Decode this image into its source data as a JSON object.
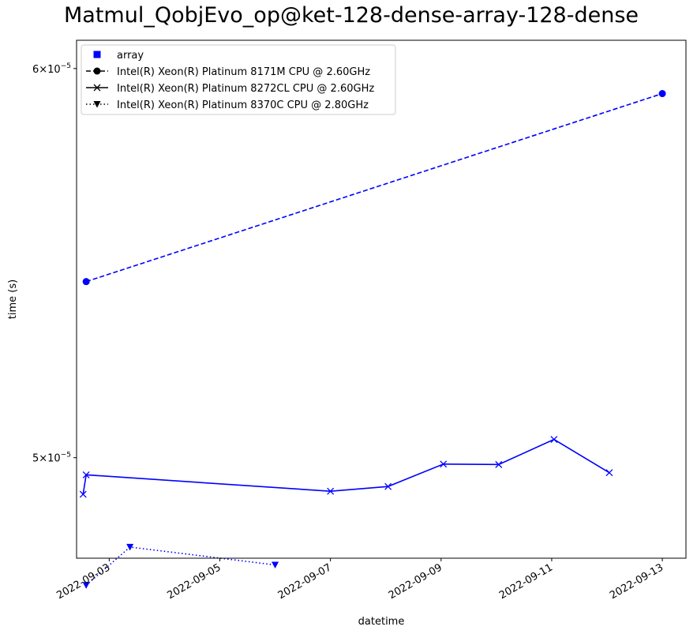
{
  "chart_data": {
    "type": "line",
    "title": "Matmul_QobjEvo_op@ket-128-dense-array-128-dense",
    "xlabel": "datetime",
    "ylabel": "time (s)",
    "yscale": "log",
    "xlim": [
      "2022-09-02T09:50",
      "2022-09-13T10:15"
    ],
    "ylim": [
      4.77e-05,
      6.08e-05
    ],
    "x_ticks": [
      "2022-09-03",
      "2022-09-05",
      "2022-09-07",
      "2022-09-09",
      "2022-09-11",
      "2022-09-13"
    ],
    "y_ticks": [
      {
        "value": 5e-05,
        "mantissa": "5",
        "exponent": "−5"
      },
      {
        "value": 6e-05,
        "mantissa": "6",
        "exponent": "−5"
      }
    ],
    "legend_position": "top-left",
    "legend": [
      {
        "label": "array",
        "marker": "square",
        "linestyle": "none"
      },
      {
        "label": "Intel(R) Xeon(R) Platinum 8171M CPU @ 2.60GHz",
        "marker": "circle",
        "linestyle": "dashed"
      },
      {
        "label": "Intel(R) Xeon(R) Platinum 8272CL CPU @ 2.60GHz",
        "marker": "x",
        "linestyle": "solid"
      },
      {
        "label": "Intel(R) Xeon(R) Platinum 8370C CPU @ 2.80GHz",
        "marker": "triangle-down",
        "linestyle": "dotted"
      }
    ],
    "series": [
      {
        "name": "Intel(R) Xeon(R) Platinum 8171M CPU @ 2.60GHz",
        "marker": "circle",
        "linestyle": "dashed",
        "color": "#0000ff",
        "x": [
          "2022-09-02T14:00",
          "2022-09-13T00:00"
        ],
        "y": [
          5.43e-05,
          5.93e-05
        ]
      },
      {
        "name": "Intel(R) Xeon(R) Platinum 8272CL CPU @ 2.60GHz",
        "marker": "x",
        "linestyle": "solid",
        "color": "#0000ff",
        "x": [
          "2022-09-02T12:40",
          "2022-09-02T14:00",
          "2022-09-07T00:00",
          "2022-09-08T01:00",
          "2022-09-09T01:00",
          "2022-09-10T01:00",
          "2022-09-11T01:00",
          "2022-09-12T01:00"
        ],
        "y": [
          4.915e-05,
          4.96e-05,
          4.922e-05,
          4.933e-05,
          4.985e-05,
          4.984e-05,
          5.043e-05,
          4.965e-05
        ]
      },
      {
        "name": "Intel(R) Xeon(R) Platinum 8370C CPU @ 2.80GHz",
        "marker": "triangle-down",
        "linestyle": "dotted",
        "color": "#0000ff",
        "x": [
          "2022-09-02T14:00",
          "2022-09-03T09:00",
          "2022-09-06T00:00"
        ],
        "y": [
          4.71e-05,
          4.795e-05,
          4.755e-05
        ]
      }
    ]
  }
}
